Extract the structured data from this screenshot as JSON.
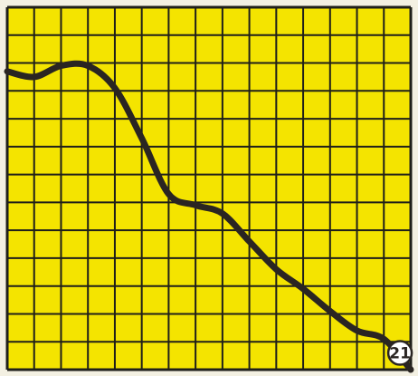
{
  "chart_data": {
    "type": "line",
    "title": "",
    "xlabel": "",
    "ylabel": "",
    "grid": true,
    "legend": "none",
    "xlim": [
      0,
      15
    ],
    "ylim": [
      0,
      13
    ],
    "series": [
      {
        "x": [
          0,
          1,
          2,
          3,
          4,
          5,
          6,
          7,
          8,
          9,
          10,
          11,
          12,
          13,
          14,
          15
        ],
        "values": [
          10.7,
          10.5,
          10.9,
          10.9,
          10.1,
          8.3,
          6.3,
          5.9,
          5.6,
          4.6,
          3.6,
          2.9,
          2.1,
          1.4,
          1.1,
          0.0
        ]
      }
    ],
    "annotation": {
      "text": "21",
      "x": 14.6,
      "y": 0.6
    },
    "colors": {
      "background": "#f4e400",
      "grid": "#1f1f1a",
      "line": "#2a2522",
      "page": "#f3f0e2"
    }
  }
}
